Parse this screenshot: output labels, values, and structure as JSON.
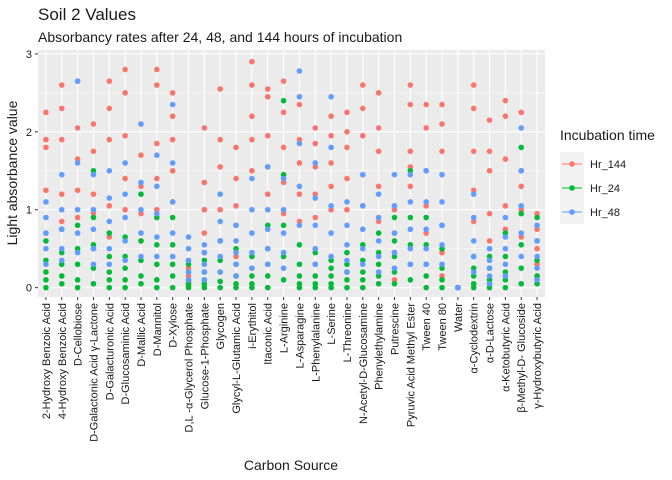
{
  "chart_data": {
    "type": "strip",
    "title": "Soil 2 Values",
    "subtitle": "Absorbancy rates after 24, 48, and 144 hours of incubation",
    "x_label": "Carbon Source",
    "y_label": "Light absorbance value",
    "legend_title": "Incubation time",
    "legend_position": "right",
    "grid": true,
    "ylim": [
      -0.12,
      3.05
    ],
    "yticks": [
      0,
      1,
      2,
      3
    ],
    "categories": [
      "2-Hydroxy Benzoic Acid",
      "4-Hydroxy Benzoic Acid",
      "D-Cellobiose",
      "D-Galactonic Acid γ-Lactone",
      "D-Galacturonic Acid",
      "D-Glucosaminic Acid",
      "D-Mallic Acid",
      "D-Mannitol",
      "D-Xylose",
      "D,L -α-Glycerol Phosphate",
      "Glucose-1-Phosphate",
      "Glycogen",
      "Glycyl-L-Glutamic Acid",
      "i-Erythitol",
      "Itaconic Acid",
      "L-Arginine",
      "L-Asparagine",
      "L-Phenylalanine",
      "L-Serine",
      "L-Threonine",
      "N-Acetyl-D-Glucosamine",
      "Phenylethylamine",
      "Putrescine",
      "Pyruvic Acid Methyl Ester",
      "Tween 40",
      "Tween 80",
      "Water",
      "α-Cyclodextrin",
      "α-D-Lactose",
      "α-Ketobutyric Acid",
      "β-Methyl-D- Glucoside",
      "γ-Hydroxybutyric Acid"
    ],
    "series": [
      {
        "name": "Hr_144",
        "color": "#F8766D",
        "values": [
          [
            2.25,
            1.9,
            1.8,
            1.25,
            0.7
          ],
          [
            2.6,
            2.3,
            1.9,
            1.2,
            0.85
          ],
          [
            2.65,
            2.05,
            1.65,
            1.25,
            0.9
          ],
          [
            2.1,
            1.75,
            1.2,
            0.95,
            0.5
          ],
          [
            2.65,
            2.3,
            1.9,
            1.05,
            0.65
          ],
          [
            2.8,
            2.5,
            1.95,
            1.4,
            1.0
          ],
          [
            2.1,
            1.7,
            1.3,
            0.95,
            0.6
          ],
          [
            2.8,
            2.6,
            1.85,
            1.4,
            1.0
          ],
          [
            2.5,
            2.2,
            1.9,
            1.5,
            1.1
          ],
          [
            0.35,
            0.25,
            0.15,
            0.08,
            0.03
          ],
          [
            2.05,
            1.35,
            1.0,
            0.7,
            0.45
          ],
          [
            2.55,
            1.9,
            1.55,
            1.0,
            0.6
          ],
          [
            1.8,
            1.4,
            1.05,
            0.8,
            0.4
          ],
          [
            2.9,
            2.6,
            2.2,
            1.9,
            1.5
          ],
          [
            2.55,
            2.45,
            1.95,
            1.55,
            1.2
          ],
          [
            2.65,
            2.25,
            1.8,
            1.35,
            0.95
          ],
          [
            2.35,
            1.9,
            1.6,
            1.2,
            0.85
          ],
          [
            2.05,
            1.85,
            1.55,
            1.2,
            0.9
          ],
          [
            2.2,
            1.95,
            1.6,
            1.3,
            1.0
          ],
          [
            2.25,
            2.0,
            1.8,
            1.4,
            1.0
          ],
          [
            2.6,
            2.3,
            1.95,
            1.45,
            1.05
          ],
          [
            2.5,
            2.05,
            1.75,
            1.3,
            0.85
          ],
          [
            1.0,
            0.7,
            0.45,
            0.25,
            0.1
          ],
          [
            2.6,
            2.35,
            1.75,
            1.55,
            1.3
          ],
          [
            2.35,
            2.05,
            1.5,
            1.05,
            0.7
          ],
          [
            2.35,
            2.1,
            1.75,
            0.45,
            0.15
          ],
          [
            0,
            0,
            0,
            0,
            0
          ],
          [
            2.6,
            2.3,
            1.75,
            1.25,
            0.85
          ],
          [
            2.15,
            1.75,
            1.5,
            0.95,
            0.6
          ],
          [
            2.4,
            2.2,
            1.65,
            1.05,
            0.75
          ],
          [
            2.25,
            1.5,
            1.3,
            1.0,
            0.65
          ],
          [
            0.95,
            0.75,
            0.5,
            0.3,
            0.15
          ]
        ]
      },
      {
        "name": "Hr_24",
        "color": "#00BA38",
        "values": [
          [
            0.6,
            0.35,
            0.2,
            0.1,
            0.0
          ],
          [
            0.75,
            0.45,
            0.3,
            0.15,
            0.05
          ],
          [
            0.8,
            0.5,
            0.3,
            0.1,
            0.0
          ],
          [
            1.5,
            0.9,
            0.55,
            0.25,
            0.05
          ],
          [
            0.7,
            0.4,
            0.2,
            0.1,
            0.0
          ],
          [
            0.65,
            0.4,
            0.25,
            0.1,
            0.0
          ],
          [
            1.2,
            0.6,
            0.35,
            0.15,
            0.05
          ],
          [
            0.9,
            0.55,
            0.3,
            0.1,
            0.0
          ],
          [
            0.9,
            0.55,
            0.3,
            0.15,
            0.0
          ],
          [
            0.3,
            0.2,
            0.1,
            0.05,
            0.0
          ],
          [
            0.35,
            0.2,
            0.1,
            0.05,
            0.0
          ],
          [
            0.6,
            0.35,
            0.2,
            0.08,
            0.0
          ],
          [
            0.5,
            0.3,
            0.15,
            0.05,
            0.0
          ],
          [
            0.4,
            0.25,
            0.15,
            0.05,
            0.0
          ],
          [
            0.8,
            0.5,
            0.3,
            0.15,
            0.0
          ],
          [
            2.4,
            1.45,
            0.8,
            0.4,
            0.1
          ],
          [
            0.55,
            0.3,
            0.15,
            0.05,
            0.0
          ],
          [
            0.45,
            0.3,
            0.15,
            0.05,
            0.0
          ],
          [
            0.35,
            0.25,
            0.15,
            0.05,
            0.0
          ],
          [
            0.45,
            0.3,
            0.2,
            0.1,
            0.0
          ],
          [
            0.55,
            0.35,
            0.2,
            0.1,
            0.0
          ],
          [
            0.7,
            0.45,
            0.3,
            0.15,
            0.05
          ],
          [
            0.9,
            0.6,
            0.4,
            0.2,
            0.05
          ],
          [
            1.5,
            0.9,
            0.55,
            0.3,
            0.1
          ],
          [
            0.9,
            0.55,
            0.3,
            0.15,
            0.0
          ],
          [
            0.8,
            0.5,
            0.25,
            0.1,
            0.0
          ],
          [
            0,
            0,
            0,
            0,
            0
          ],
          [
            0.4,
            0.25,
            0.15,
            0.05,
            0.0
          ],
          [
            0.4,
            0.25,
            0.1,
            0.05,
            0.0
          ],
          [
            0.7,
            0.4,
            0.2,
            0.1,
            0.0
          ],
          [
            1.8,
            0.95,
            0.55,
            0.25,
            0.05
          ],
          [
            0.9,
            0.6,
            0.35,
            0.15,
            0.05
          ]
        ]
      },
      {
        "name": "Hr_48",
        "color": "#619CFF",
        "values": [
          [
            1.1,
            0.9,
            0.7,
            0.5,
            0.3
          ],
          [
            1.45,
            1.0,
            0.75,
            0.5,
            0.35
          ],
          [
            2.65,
            1.6,
            1.0,
            0.7,
            0.45
          ],
          [
            1.45,
            1.0,
            0.75,
            0.5,
            0.3
          ],
          [
            1.5,
            1.15,
            0.85,
            0.5,
            0.3
          ],
          [
            1.6,
            1.2,
            0.9,
            0.6,
            0.35
          ],
          [
            2.1,
            1.35,
            1.0,
            0.7,
            0.4
          ],
          [
            1.7,
            1.3,
            0.95,
            0.65,
            0.4
          ],
          [
            2.35,
            1.6,
            1.1,
            0.7,
            0.4
          ],
          [
            0.65,
            0.5,
            0.35,
            0.2,
            0.1
          ],
          [
            0.55,
            0.45,
            0.3,
            0.2,
            0.1
          ],
          [
            1.2,
            0.85,
            0.6,
            0.4,
            0.2
          ],
          [
            0.8,
            0.6,
            0.45,
            0.3,
            0.15
          ],
          [
            1.4,
            1.0,
            0.7,
            0.45,
            0.25
          ],
          [
            1.55,
            1.0,
            0.75,
            0.5,
            0.3
          ],
          [
            1.4,
            1.0,
            0.7,
            0.45,
            0.25
          ],
          [
            2.78,
            2.45,
            1.85,
            1.3,
            0.8
          ],
          [
            1.6,
            1.15,
            0.8,
            0.5,
            0.3
          ],
          [
            2.45,
            1.8,
            1.05,
            0.7,
            0.4
          ],
          [
            1.1,
            0.8,
            0.55,
            0.35,
            0.2
          ],
          [
            1.45,
            1.05,
            0.75,
            0.5,
            0.3
          ],
          [
            1.2,
            0.9,
            0.6,
            0.4,
            0.2
          ],
          [
            1.45,
            1.05,
            0.7,
            0.45,
            0.25
          ],
          [
            1.45,
            1.1,
            0.75,
            0.5,
            0.3
          ],
          [
            1.5,
            1.1,
            0.75,
            0.5,
            0.3
          ],
          [
            1.45,
            1.1,
            0.8,
            0.55,
            0.3
          ],
          [
            0,
            0,
            0,
            0,
            0
          ],
          [
            1.2,
            0.9,
            0.6,
            0.4,
            0.2
          ],
          [
            0.5,
            0.35,
            0.25,
            0.15,
            0.05
          ],
          [
            0.9,
            0.65,
            0.5,
            0.3,
            0.15
          ],
          [
            2.05,
            1.5,
            1.05,
            0.7,
            0.4
          ],
          [
            0.8,
            0.6,
            0.4,
            0.25,
            0.1
          ]
        ]
      }
    ]
  }
}
